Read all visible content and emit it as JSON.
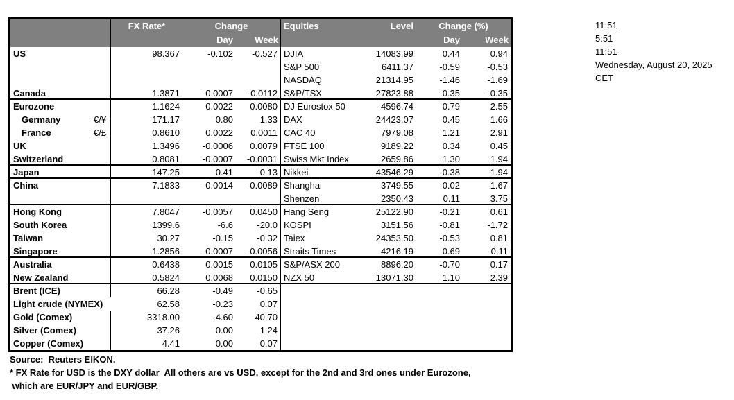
{
  "table": {
    "headers": {
      "fx_rate": "FX Rate*",
      "change": "Change",
      "day": "Day",
      "week": "Week",
      "equities": "Equities",
      "level": "Level",
      "change_pct": "Change (%)",
      "day2": "Day",
      "week2": "Week"
    },
    "rows": [
      {
        "name": "US",
        "sym": "",
        "fx": "98.367",
        "day": "-0.102",
        "week": "-0.527",
        "eq": "DJIA",
        "level": "14083.99",
        "eday": "0.44",
        "eweek": "0.94"
      },
      {
        "name": "",
        "sym": "",
        "fx": "",
        "day": "",
        "week": "",
        "eq": "S&P 500",
        "level": "6411.37",
        "eday": "-0.59",
        "eweek": "-0.53"
      },
      {
        "name": "",
        "sym": "",
        "fx": "",
        "day": "",
        "week": "",
        "eq": "NASDAQ",
        "level": "21314.95",
        "eday": "-1.46",
        "eweek": "-1.69"
      },
      {
        "name": "Canada",
        "sym": "",
        "fx": "1.3871",
        "day": "-0.0007",
        "week": "-0.0112",
        "eq": "S&P/TSX",
        "level": "27823.88",
        "eday": "-0.35",
        "eweek": "-0.35",
        "section_end": true
      },
      {
        "name": "Eurozone",
        "sym": "",
        "fx": "1.1624",
        "day": "0.0022",
        "week": "0.0080",
        "eq": "DJ Eurostox 50",
        "level": "4596.74",
        "eday": "0.79",
        "eweek": "2.55"
      },
      {
        "name": "Germany",
        "sym": "€/¥",
        "fx": "171.17",
        "day": "0.80",
        "week": "1.33",
        "eq": "DAX",
        "level": "24423.07",
        "eday": "0.45",
        "eweek": "1.66",
        "indent": true
      },
      {
        "name": "France",
        "sym": "€/£",
        "fx": "0.8610",
        "day": "0.0022",
        "week": "0.0011",
        "eq": "CAC 40",
        "level": "7979.08",
        "eday": "1.21",
        "eweek": "2.91",
        "indent": true
      },
      {
        "name": "UK",
        "sym": "",
        "fx": "1.3496",
        "day": "-0.0006",
        "week": "0.0079",
        "eq": "FTSE 100",
        "level": "9189.22",
        "eday": "0.34",
        "eweek": "0.45"
      },
      {
        "name": "Switzerland",
        "sym": "",
        "fx": "0.8081",
        "day": "-0.0007",
        "week": "-0.0031",
        "eq": "Swiss Mkt Index",
        "level": "2659.86",
        "eday": "1.30",
        "eweek": "1.94",
        "section_end": true
      },
      {
        "name": "Japan",
        "sym": "",
        "fx": "147.25",
        "day": "0.41",
        "week": "0.13",
        "eq": "Nikkei",
        "level": "43546.29",
        "eday": "-0.38",
        "eweek": "1.94",
        "section_end": true
      },
      {
        "name": "China",
        "sym": "",
        "fx": "7.1833",
        "day": "-0.0014",
        "week": "-0.0089",
        "eq": "Shanghai",
        "level": "3749.55",
        "eday": "-0.02",
        "eweek": "1.67"
      },
      {
        "name": "",
        "sym": "",
        "fx": "",
        "day": "",
        "week": "",
        "eq": "Shenzen",
        "level": "2350.43",
        "eday": "0.11",
        "eweek": "3.75",
        "section_end": true
      },
      {
        "name": "Hong Kong",
        "sym": "",
        "fx": "7.8047",
        "day": "-0.0057",
        "week": "0.0450",
        "eq": "Hang Seng",
        "level": "25122.90",
        "eday": "-0.21",
        "eweek": "0.61"
      },
      {
        "name": "South Korea",
        "sym": "",
        "fx": "1399.6",
        "day": "-6.6",
        "week": "-20.0",
        "eq": "KOSPI",
        "level": "3151.56",
        "eday": "-0.81",
        "eweek": "-1.72"
      },
      {
        "name": "Taiwan",
        "sym": "",
        "fx": "30.27",
        "day": "-0.15",
        "week": "-0.32",
        "eq": "Taiex",
        "level": "24353.50",
        "eday": "-0.53",
        "eweek": "0.81"
      },
      {
        "name": "Singapore",
        "sym": "",
        "fx": "1.2856",
        "day": "-0.0007",
        "week": "-0.0056",
        "eq": "Straits Times",
        "level": "4216.19",
        "eday": "0.69",
        "eweek": "-0.11",
        "section_end": true
      },
      {
        "name": "Australia",
        "sym": "",
        "fx": "0.6438",
        "day": "0.0015",
        "week": "0.0105",
        "eq": "S&P/ASX 200",
        "level": "8896.20",
        "eday": "-0.70",
        "eweek": "0.17"
      },
      {
        "name": "New Zealand",
        "sym": "",
        "fx": "0.5824",
        "day": "0.0068",
        "week": "0.0150",
        "eq": "NZX 50",
        "level": "13071.30",
        "eday": "1.10",
        "eweek": "2.39",
        "section_end": true
      },
      {
        "name": "Brent (ICE)",
        "sym": "",
        "fx": "66.28",
        "day": "-0.49",
        "week": "-0.65",
        "eq": "",
        "level": "",
        "eday": "",
        "eweek": ""
      },
      {
        "name": "Light crude (NYMEX)",
        "sym": "",
        "fx": "62.58",
        "day": "-0.23",
        "week": "0.07",
        "eq": "",
        "level": "",
        "eday": "",
        "eweek": "",
        "no_divider": true
      },
      {
        "name": "Gold (Comex)",
        "sym": "",
        "fx": "3318.00",
        "day": "-4.60",
        "week": "40.70",
        "eq": "",
        "level": "",
        "eday": "",
        "eweek": ""
      },
      {
        "name": "Silver (Comex)",
        "sym": "",
        "fx": "37.26",
        "day": "0.00",
        "week": "1.24",
        "eq": "",
        "level": "",
        "eday": "",
        "eweek": ""
      },
      {
        "name": "Copper (Comex)",
        "sym": "",
        "fx": "4.41",
        "day": "0.00",
        "week": "0.07",
        "eq": "",
        "level": "",
        "eday": "",
        "eweek": ""
      }
    ]
  },
  "timestamps": {
    "lines": [
      "11:51",
      "5:51",
      "11:51",
      "Wednesday, August 20, 2025",
      "CET"
    ]
  },
  "footer": {
    "source": "Source:  Reuters EIKON.",
    "note1": "* FX Rate for USD is the DXY dollar  All others are vs USD, except for the 2nd and 3rd ones under Eurozone,",
    "note2": " which are EUR/JPY and EUR/GBP."
  },
  "colors": {
    "header_bg": "#808080",
    "header_text": "#ffffff",
    "border": "#000000"
  }
}
